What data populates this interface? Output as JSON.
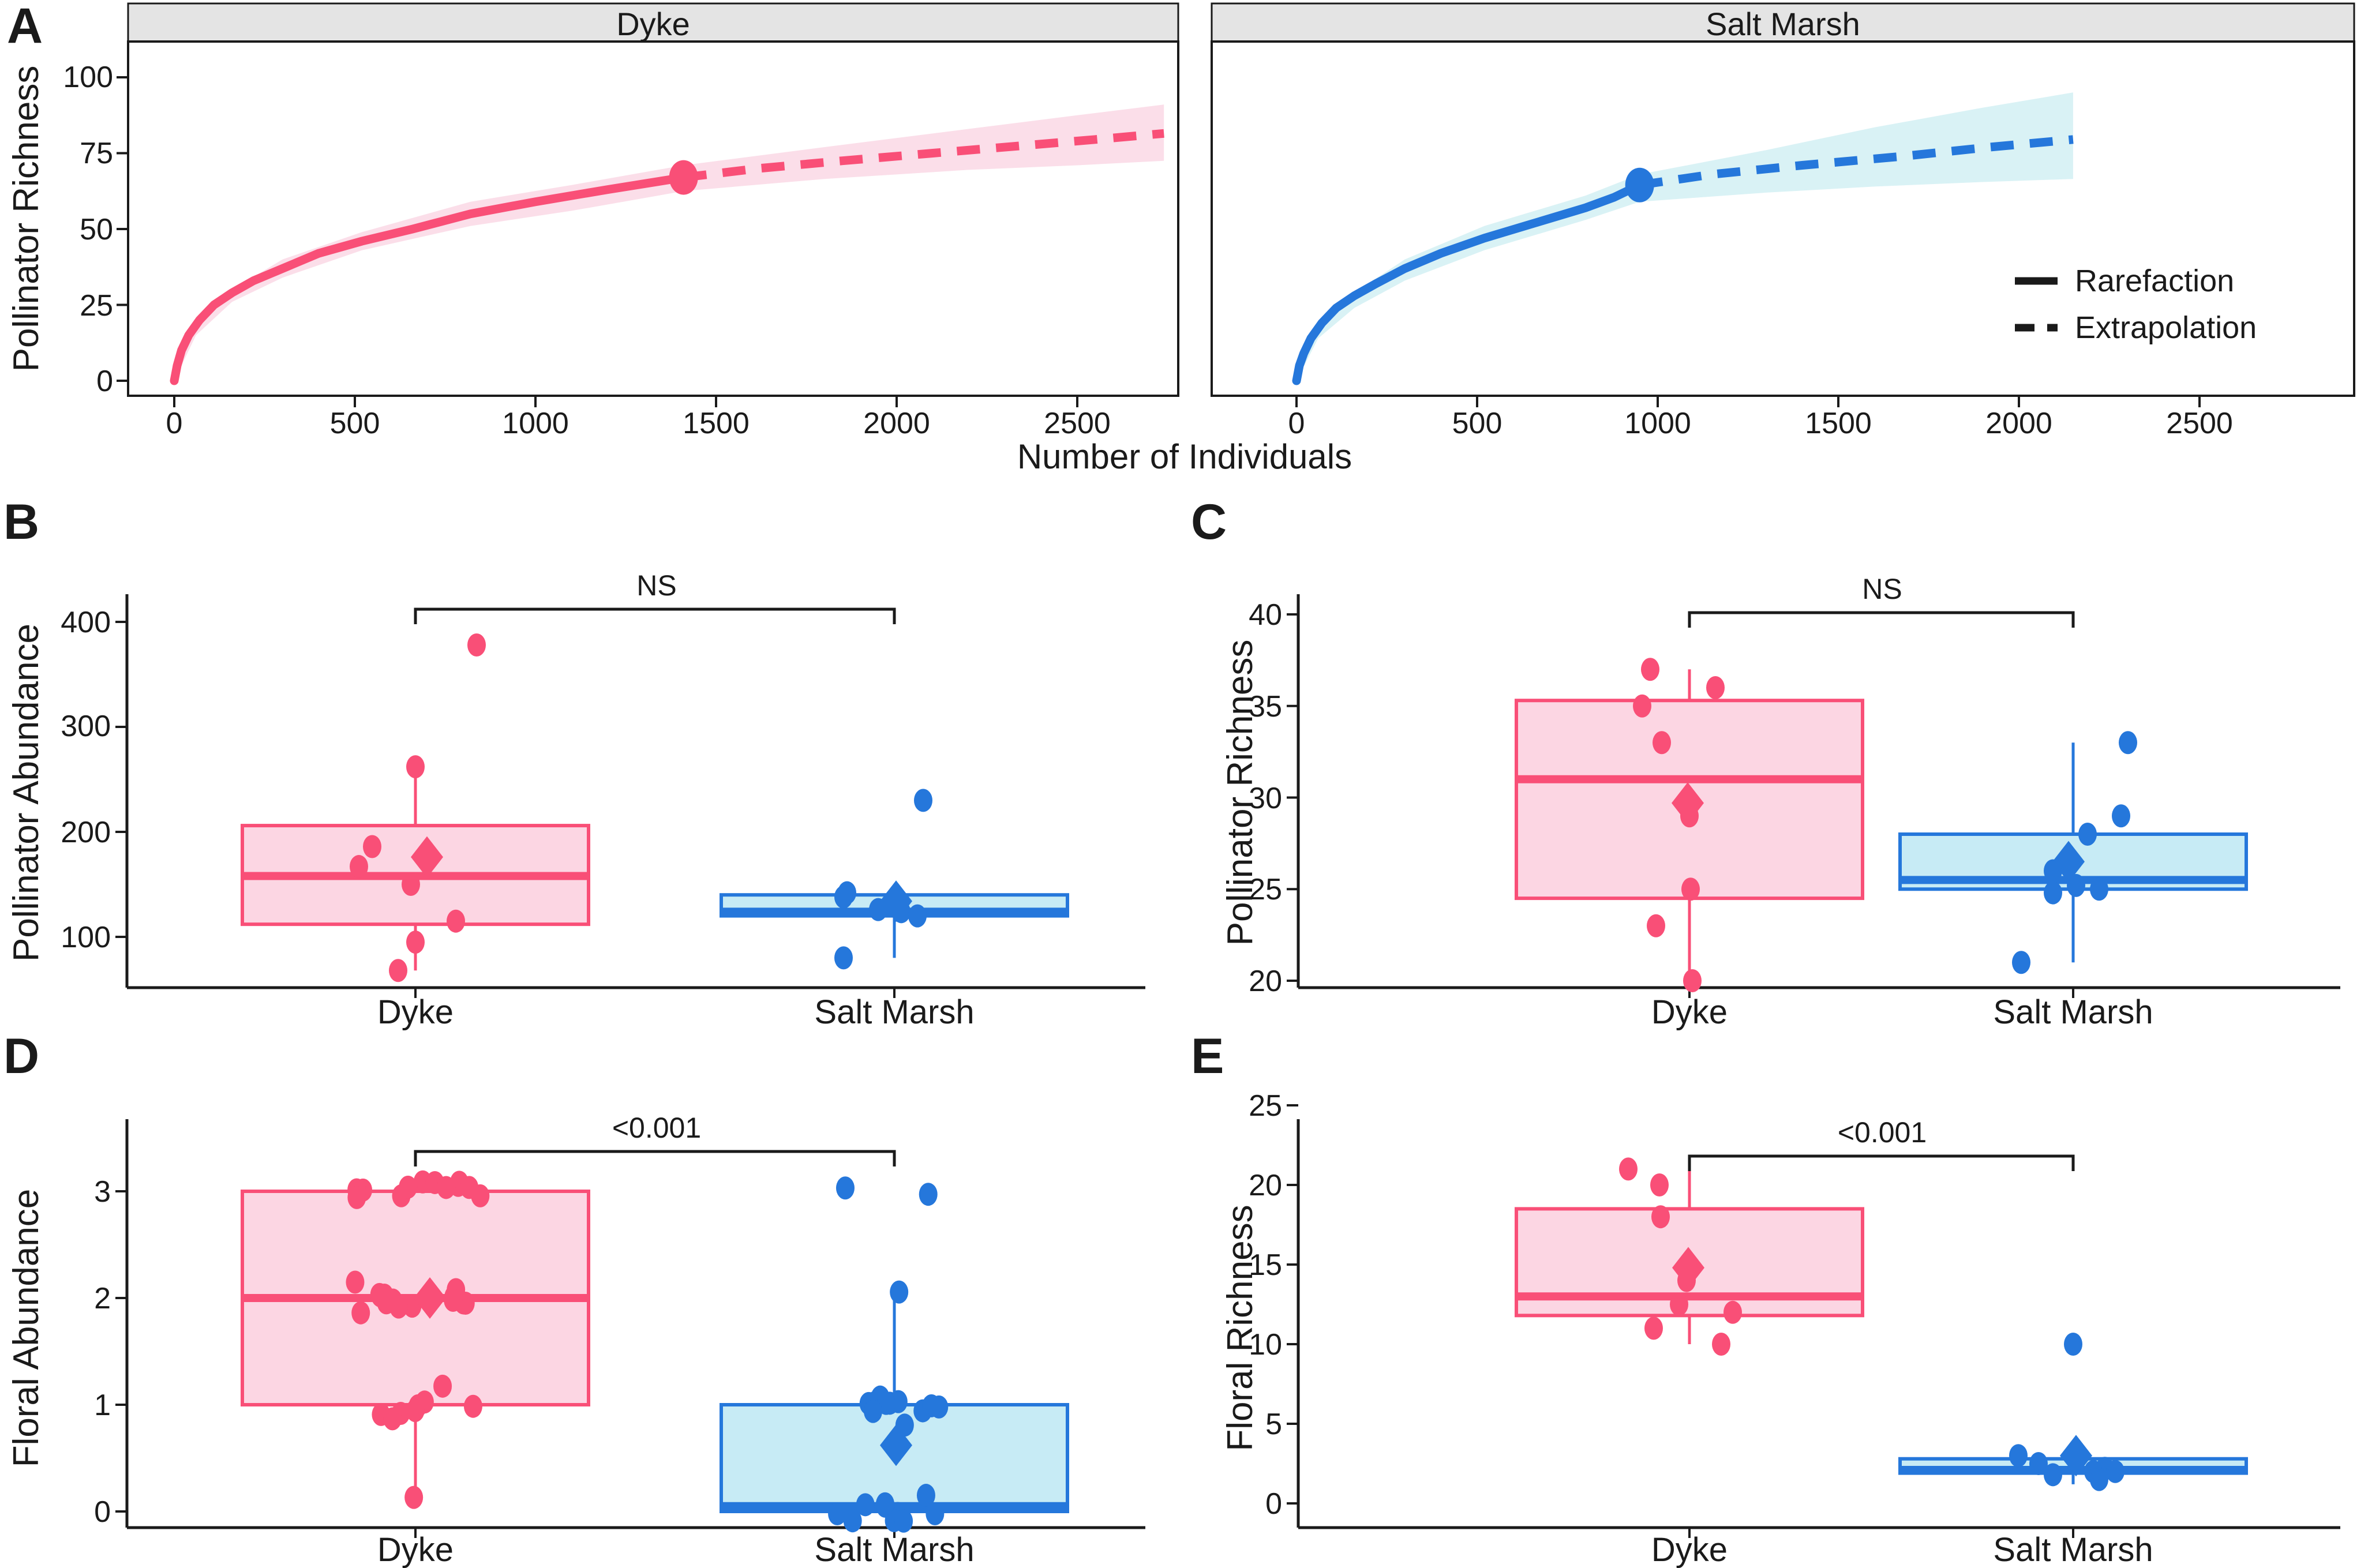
{
  "figure": {
    "panel_labels": [
      "A",
      "B",
      "C",
      "D",
      "E"
    ],
    "colors": {
      "dyke": "#F94F77",
      "dyke_fill": "#FCD6E3",
      "dyke_ribbon": "#FBDEE9",
      "salt": "#2577DB",
      "salt_fill": "#C7EBF5",
      "salt_ribbon": "#D9F2F5",
      "strip_fill": "#E4E4E4",
      "axis": "#1A1A1A"
    }
  },
  "chart_data": [
    {
      "type": "line",
      "panel": "A",
      "xlabel": "Number of Individuals",
      "ylabel": "Pollinator Richness",
      "y_ticks": [
        0,
        25,
        50,
        75,
        100
      ],
      "ylim": [
        0,
        105
      ],
      "grid": false,
      "legend_position": "inside-right",
      "legend": [
        "Rarefaction",
        "Extrapolation"
      ],
      "facets": [
        {
          "label": "Dyke",
          "x_ticks": [
            0,
            500,
            1000,
            1500,
            2000,
            2500
          ],
          "endpoint": [
            1410,
            67
          ],
          "solid": [
            [
              0,
              0
            ],
            [
              8,
              5
            ],
            [
              20,
              10
            ],
            [
              40,
              15
            ],
            [
              70,
              20
            ],
            [
              110,
              25
            ],
            [
              160,
              29
            ],
            [
              220,
              33
            ],
            [
              300,
              37
            ],
            [
              400,
              42
            ],
            [
              520,
              46
            ],
            [
              660,
              50
            ],
            [
              820,
              55
            ],
            [
              1000,
              59
            ],
            [
              1200,
              63
            ],
            [
              1410,
              67
            ]
          ],
          "dashed": [
            [
              1410,
              67
            ],
            [
              1620,
              70
            ],
            [
              1850,
              72.5
            ],
            [
              2100,
              75
            ],
            [
              2350,
              77.5
            ],
            [
              2550,
              79.5
            ],
            [
              2740,
              81.5
            ]
          ],
          "ribbon_upper": [
            [
              0,
              1
            ],
            [
              60,
              19
            ],
            [
              160,
              30
            ],
            [
              300,
              40
            ],
            [
              520,
              49
            ],
            [
              820,
              59
            ],
            [
              1100,
              64.5
            ],
            [
              1410,
              71
            ],
            [
              1800,
              77
            ],
            [
              2200,
              83
            ],
            [
              2500,
              87.5
            ],
            [
              2740,
              91
            ]
          ],
          "ribbon_lower": [
            [
              0,
              0
            ],
            [
              60,
              15
            ],
            [
              160,
              26
            ],
            [
              300,
              34
            ],
            [
              520,
              43
            ],
            [
              820,
              51
            ],
            [
              1100,
              56
            ],
            [
              1410,
              62.5
            ],
            [
              1800,
              66.5
            ],
            [
              2200,
              69.5
            ],
            [
              2500,
              71
            ],
            [
              2740,
              72.5
            ]
          ]
        },
        {
          "label": "Salt Marsh",
          "x_ticks": [
            0,
            500,
            1000,
            1500,
            2000,
            2500
          ],
          "endpoint": [
            950,
            64.5
          ],
          "solid": [
            [
              0,
              0
            ],
            [
              8,
              5
            ],
            [
              20,
              9
            ],
            [
              40,
              14
            ],
            [
              70,
              19
            ],
            [
              110,
              24
            ],
            [
              160,
              28
            ],
            [
              220,
              32
            ],
            [
              300,
              37
            ],
            [
              400,
              42
            ],
            [
              520,
              47
            ],
            [
              660,
              52
            ],
            [
              800,
              57
            ],
            [
              880,
              60.5
            ],
            [
              950,
              64.5
            ]
          ],
          "dashed": [
            [
              950,
              64.5
            ],
            [
              1150,
              68
            ],
            [
              1400,
              71
            ],
            [
              1680,
              74
            ],
            [
              1920,
              77
            ],
            [
              2150,
              79.5
            ]
          ],
          "ribbon_upper": [
            [
              0,
              1
            ],
            [
              60,
              18
            ],
            [
              160,
              29
            ],
            [
              300,
              40
            ],
            [
              520,
              51
            ],
            [
              800,
              61
            ],
            [
              950,
              68
            ],
            [
              1300,
              76
            ],
            [
              1600,
              83.5
            ],
            [
              1900,
              90
            ],
            [
              2150,
              95
            ]
          ],
          "ribbon_lower": [
            [
              0,
              0
            ],
            [
              60,
              14
            ],
            [
              160,
              24
            ],
            [
              300,
              33
            ],
            [
              520,
              43
            ],
            [
              800,
              53
            ],
            [
              950,
              59
            ],
            [
              1300,
              62
            ],
            [
              1600,
              64
            ],
            [
              1900,
              65.5
            ],
            [
              2150,
              66.5
            ]
          ]
        }
      ]
    },
    {
      "type": "box",
      "panel": "B",
      "ylabel": "Pollinator Abundance",
      "significance": "NS",
      "y_ticks": [
        100,
        200,
        300,
        400
      ],
      "ylim": [
        40,
        450
      ],
      "groups": [
        {
          "category": "Dyke",
          "q1": 112,
          "median": 158,
          "q3": 206,
          "whisker_low": 68,
          "whisker_high": 262,
          "mean": 176,
          "points": [
            378,
            262,
            186,
            167,
            150,
            115,
            95,
            68
          ]
        },
        {
          "category": "Salt Marsh",
          "q1": 120,
          "median": 124,
          "q3": 140,
          "whisker_low": 80,
          "whisker_high": 148,
          "mean": 134,
          "points": [
            230,
            142,
            138,
            133,
            126,
            124,
            120,
            80
          ]
        }
      ]
    },
    {
      "type": "box",
      "panel": "C",
      "ylabel": "Pollinator Richness",
      "significance": "NS",
      "y_ticks": [
        20,
        25,
        30,
        35,
        40
      ],
      "ylim": [
        19,
        41
      ],
      "groups": [
        {
          "category": "Dyke",
          "q1": 24.5,
          "median": 31,
          "q3": 35.3,
          "whisker_low": 20,
          "whisker_high": 37,
          "mean": 29.7,
          "points": [
            37,
            36,
            35,
            33,
            29,
            25,
            23,
            20
          ]
        },
        {
          "category": "Salt Marsh",
          "q1": 25,
          "median": 25.5,
          "q3": 28,
          "whisker_low": 21,
          "whisker_high": 33,
          "mean": 26.5,
          "points": [
            33,
            29,
            28,
            26,
            25.2,
            25,
            24.8,
            21
          ]
        }
      ]
    },
    {
      "type": "box",
      "panel": "D",
      "ylabel": "Floral Abundance",
      "significance": "<0.001",
      "y_ticks": [
        0,
        1,
        2,
        3
      ],
      "ylim": [
        0,
        3.6
      ],
      "groups": [
        {
          "category": "Dyke",
          "q1": 1,
          "median": 2,
          "q3": 3,
          "whisker_low": 0.05,
          "whisker_high": 3,
          "mean": 2.0,
          "points": [
            3.1,
            3,
            3,
            3,
            3,
            3,
            3,
            3,
            3,
            3,
            3,
            3,
            2.1,
            2,
            2,
            2,
            2,
            2,
            2,
            2,
            2,
            2,
            2,
            2,
            2,
            1.9,
            1.1,
            1,
            1,
            1,
            1,
            1,
            1,
            0.9,
            0.05
          ]
        },
        {
          "category": "Salt Marsh",
          "q1": 0,
          "median": 0.05,
          "q3": 1,
          "whisker_low": 0,
          "whisker_high": 2,
          "mean": 0.62,
          "points": [
            3,
            2.95,
            2.05,
            1.05,
            1,
            1,
            1,
            1,
            1,
            1,
            1,
            1,
            0.95,
            0.9,
            0.1,
            0.05,
            0,
            0,
            0,
            0,
            0,
            0,
            0,
            0
          ]
        }
      ]
    },
    {
      "type": "box",
      "panel": "E",
      "ylabel": "Floral Richness",
      "significance": "<0.001",
      "y_ticks": [
        0,
        5,
        10,
        15,
        20,
        25
      ],
      "ylim": [
        0,
        26
      ],
      "groups": [
        {
          "category": "Dyke",
          "q1": 11.8,
          "median": 13,
          "q3": 18.5,
          "whisker_low": 10,
          "whisker_high": 21,
          "mean": 14.8,
          "points": [
            21,
            20,
            18,
            14,
            12.5,
            12,
            11,
            10
          ]
        },
        {
          "category": "Salt Marsh",
          "q1": 1.9,
          "median": 2.1,
          "q3": 2.8,
          "whisker_low": 1.2,
          "whisker_high": 3.2,
          "mean": 3.0,
          "points": [
            10,
            3,
            2.5,
            2.2,
            2,
            2,
            1.8,
            1.5
          ]
        }
      ]
    }
  ]
}
